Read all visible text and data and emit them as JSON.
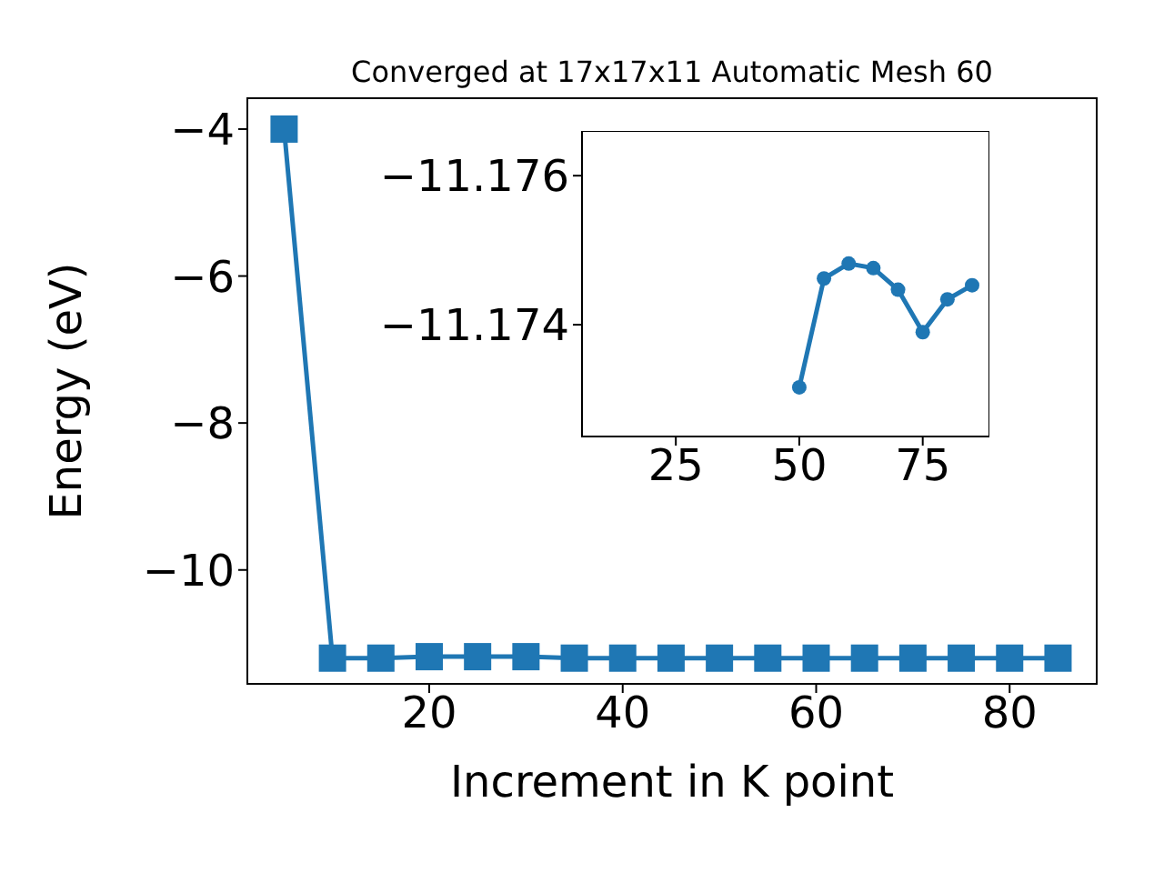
{
  "chart_data": [
    {
      "type": "line",
      "title": "Converged at 17x17x11 Automatic Mesh 60",
      "xlabel": "Increment in K point",
      "ylabel": "Energy (eV)",
      "marker": "square",
      "color": "#1f77b4",
      "x": [
        5,
        10,
        15,
        20,
        25,
        30,
        35,
        40,
        45,
        50,
        55,
        60,
        65,
        70,
        75,
        80,
        85
      ],
      "values": [
        -4,
        -11.2,
        -11.2,
        -11.18,
        -11.18,
        -11.18,
        -11.2,
        -11.2,
        -11.2,
        -11.2,
        -11.2,
        -11.2,
        -11.2,
        -11.2,
        -11.2,
        -11.2,
        -11.2
      ],
      "xlim": [
        1.2,
        89
      ],
      "xticks": [
        20,
        40,
        60,
        80
      ],
      "ylim": [
        -11.55,
        -3.58
      ],
      "yticks": [
        -10,
        -8,
        -6,
        -4
      ]
    },
    {
      "type": "line",
      "marker": "circle",
      "color": "#1f77b4",
      "x": [
        50,
        55,
        60,
        65,
        70,
        75,
        80,
        85
      ],
      "values": [
        -11.17316,
        -11.17462,
        -11.17482,
        -11.17476,
        -11.17447,
        -11.1739,
        -11.17434,
        -11.17453
      ],
      "xlim": [
        6,
        88.5
      ],
      "xticks": [
        25,
        50,
        75
      ],
      "ylim": [
        -11.1725,
        -11.1766
      ],
      "yticks": [
        -11.176,
        -11.174
      ]
    }
  ]
}
